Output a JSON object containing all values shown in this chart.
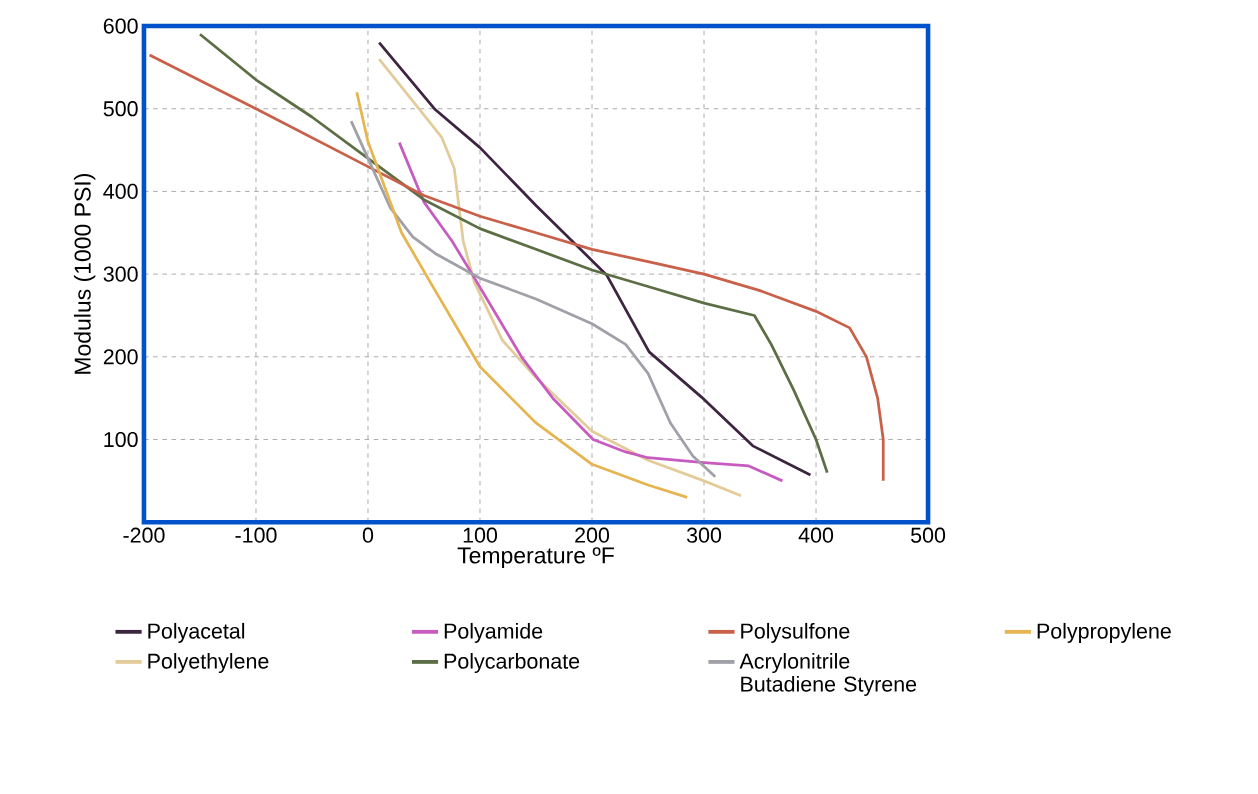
{
  "chart_data": {
    "type": "line",
    "xlabel": "Temperature ºF",
    "ylabel": "Modulus (1000 PSI)",
    "xlim": [
      -200,
      500
    ],
    "ylim": [
      0,
      600
    ],
    "xticks": [
      -200,
      -100,
      0,
      100,
      200,
      300,
      400,
      500
    ],
    "yticks": [
      100,
      200,
      300,
      400,
      500,
      600
    ],
    "grid": true,
    "legend": "bottom",
    "series": [
      {
        "name": "Polyacetal",
        "color": "#3d2440",
        "x": [
          10,
          60,
          100,
          150,
          213,
          251,
          298,
          344,
          395
        ],
        "values": [
          580,
          499,
          453,
          383,
          299,
          206,
          151,
          92,
          57
        ]
      },
      {
        "name": "Polyethylene",
        "color": "#e3cc9a",
        "x": [
          10,
          49,
          66,
          77,
          85,
          95,
          120,
          150,
          200,
          250,
          300,
          333
        ],
        "values": [
          560,
          494,
          465,
          428,
          340,
          290,
          220,
          175,
          110,
          75,
          50,
          32
        ]
      },
      {
        "name": "Polyamide",
        "color": "#c85bc0",
        "x": [
          28,
          50,
          75,
          93,
          115,
          137,
          165,
          201,
          230,
          250,
          300,
          340,
          370
        ],
        "values": [
          459,
          387,
          340,
          300,
          250,
          200,
          150,
          100,
          85,
          78,
          72,
          68,
          50
        ]
      },
      {
        "name": "Polycarbonate",
        "color": "#5c6e45",
        "x": [
          -150,
          -100,
          -50,
          0,
          50,
          100,
          150,
          200,
          250,
          300,
          345,
          360,
          380,
          400,
          410
        ],
        "values": [
          590,
          535,
          490,
          440,
          390,
          355,
          330,
          305,
          285,
          265,
          250,
          215,
          160,
          100,
          60
        ]
      },
      {
        "name": "Polysulfone",
        "color": "#c8604a",
        "x": [
          -195,
          -100,
          -50,
          0,
          50,
          100,
          150,
          200,
          250,
          300,
          350,
          400,
          430,
          445,
          455,
          460,
          460
        ],
        "values": [
          565,
          500,
          465,
          430,
          395,
          370,
          350,
          330,
          315,
          300,
          280,
          255,
          235,
          200,
          150,
          100,
          50
        ]
      },
      {
        "name": "Acrylonitrile Butadiene Styrene",
        "color": "#a0a0a8",
        "x": [
          -15,
          0,
          20,
          40,
          60,
          100,
          150,
          200,
          230,
          250,
          270,
          290,
          310
        ],
        "values": [
          485,
          440,
          380,
          345,
          325,
          295,
          270,
          240,
          215,
          180,
          120,
          80,
          55
        ]
      },
      {
        "name": "Polypropylene",
        "color": "#e6b450",
        "x": [
          -10,
          0,
          30,
          60,
          100,
          150,
          200,
          250,
          285
        ],
        "values": [
          520,
          460,
          350,
          280,
          188,
          120,
          70,
          45,
          30
        ]
      }
    ]
  }
}
